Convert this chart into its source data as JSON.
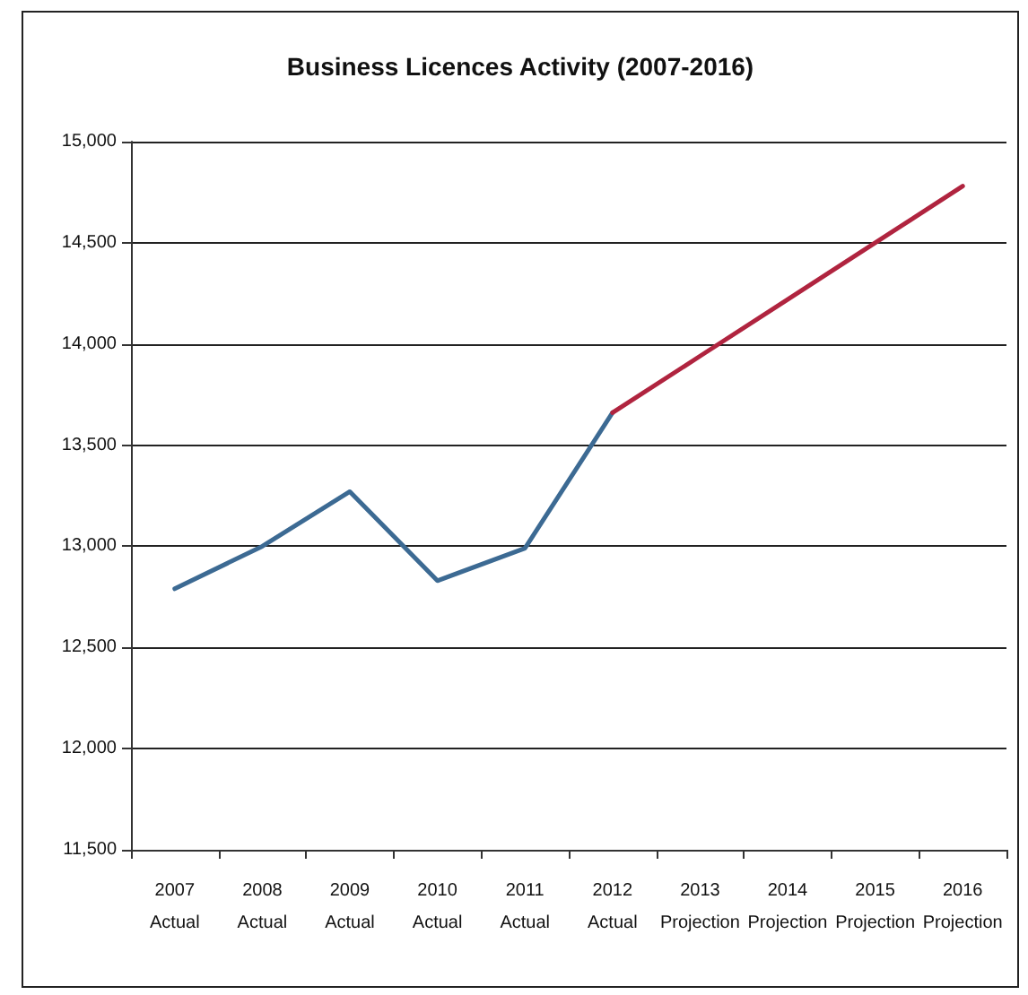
{
  "chart_data": {
    "type": "line",
    "title": "Business Licences Activity (2007-2016)",
    "categories": [
      "2007\nActual",
      "2008\nActual",
      "2009\nActual",
      "2010\nActual",
      "2011\nActual",
      "2012\nActual",
      "2013\nProjection",
      "2014\nProjection",
      "2015\nProjection",
      "2016\nProjection"
    ],
    "series": [
      {
        "color": "#3c6a93",
        "values": [
          12790,
          13000,
          13270,
          12830,
          12990,
          13660,
          null,
          null,
          null,
          null
        ]
      },
      {
        "color": "#b0243f",
        "values": [
          null,
          null,
          null,
          null,
          null,
          13660,
          13940,
          14220,
          14500,
          14780
        ]
      }
    ],
    "ylim": [
      11500,
      15000
    ],
    "yticks": [
      {
        "value": 11500,
        "label": "11,500"
      },
      {
        "value": 12000,
        "label": "12,000"
      },
      {
        "value": 12500,
        "label": "12,500"
      },
      {
        "value": 13000,
        "label": "13,000"
      },
      {
        "value": 13500,
        "label": "13,500"
      },
      {
        "value": 14000,
        "label": "14,000"
      },
      {
        "value": 14500,
        "label": "14,500"
      },
      {
        "value": 15000,
        "label": "15,000"
      }
    ],
    "grid": "y",
    "marker": "none",
    "line_style": "solid"
  }
}
